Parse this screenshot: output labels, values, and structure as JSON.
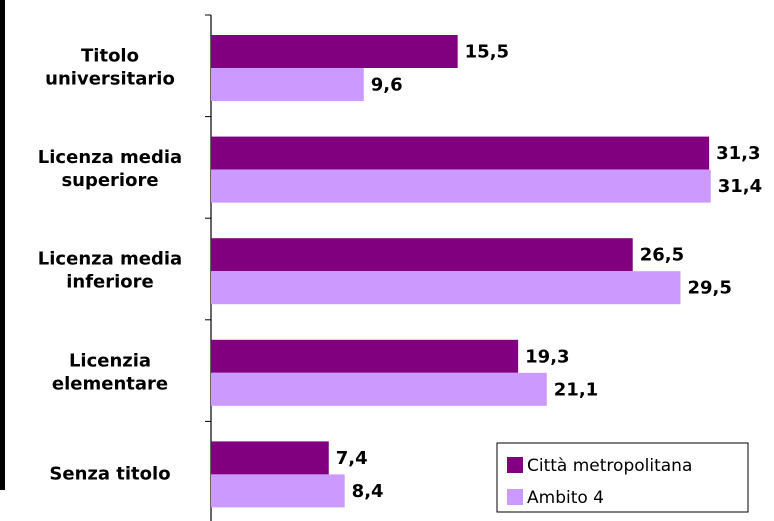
{
  "chart_data": {
    "type": "hbar",
    "categories": [
      [
        "Titolo",
        "universitario"
      ],
      [
        "Licenza media",
        "superiore"
      ],
      [
        "Licenza media",
        "inferiore"
      ],
      [
        "Licenzia",
        "elementare"
      ],
      [
        "Senza titolo"
      ]
    ],
    "series": [
      {
        "name": "Città metropolitana",
        "color": "#800080",
        "values": [
          15.5,
          31.3,
          26.5,
          19.3,
          7.4
        ],
        "value_labels": [
          "15,5",
          "31,3",
          "26,5",
          "19,3",
          "7,4"
        ]
      },
      {
        "name": "Ambito 4",
        "color": "#cc99ff",
        "values": [
          9.6,
          31.4,
          29.5,
          21.1,
          8.4
        ],
        "value_labels": [
          "9,6",
          "31,4",
          "29,5",
          "21,1",
          "8,4"
        ]
      }
    ],
    "xlim": [
      0,
      35
    ],
    "legend": "lower right"
  }
}
